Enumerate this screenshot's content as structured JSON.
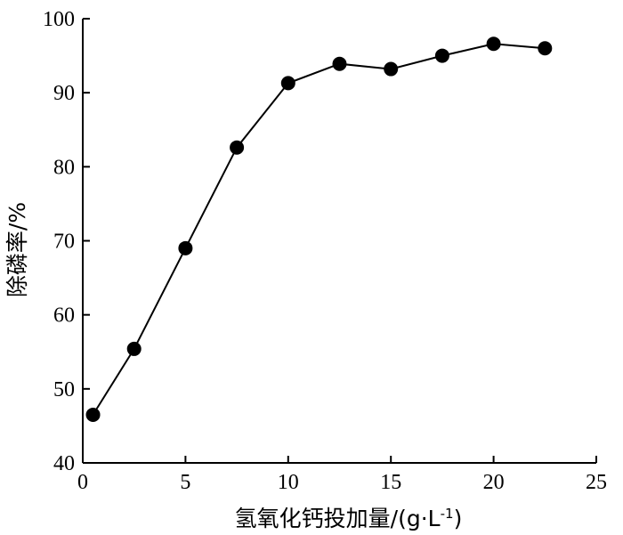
{
  "chart_data": {
    "type": "line",
    "xlabel": "氢氧化钙投加量/(g·L",
    "xlabel_sup": "-1",
    "xlabel_suffix": ")",
    "ylabel": "除磷率/%",
    "xlim": [
      0,
      25
    ],
    "ylim": [
      40,
      100
    ],
    "xticks": [
      "0",
      "5",
      "10",
      "15",
      "20",
      "25"
    ],
    "yticks": [
      "40",
      "50",
      "60",
      "70",
      "80",
      "90",
      "100"
    ],
    "grid": false,
    "legend": "none",
    "marker_color": "#000000",
    "line_color": "#000000",
    "series": [
      {
        "x": [
          0.5,
          2.5,
          5,
          7.5,
          10,
          12.5,
          15,
          17.5,
          20,
          22.5
        ],
        "y": [
          46.5,
          55.4,
          69.0,
          82.6,
          91.3,
          93.9,
          93.2,
          95.0,
          96.6,
          96.0
        ]
      }
    ]
  }
}
